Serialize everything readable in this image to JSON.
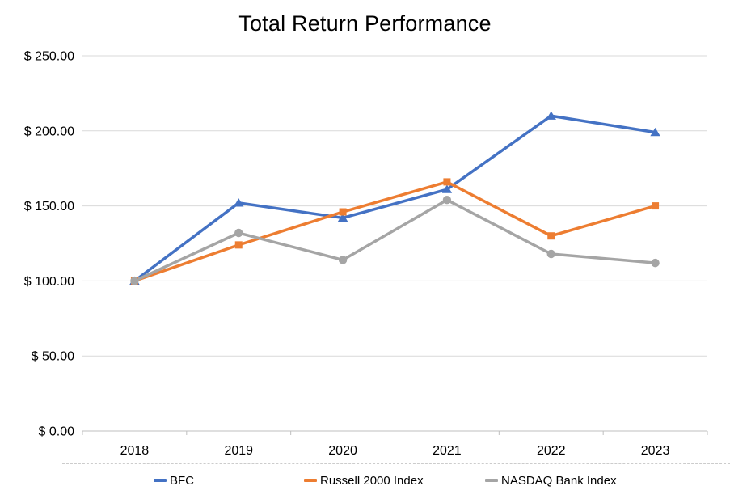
{
  "chart_data": {
    "type": "line",
    "title": "Total Return Performance",
    "categories": [
      "2018",
      "2019",
      "2020",
      "2021",
      "2022",
      "2023"
    ],
    "series": [
      {
        "name": "BFC",
        "color": "#4472C4",
        "marker": "triangle",
        "values": [
          100,
          152,
          142,
          161,
          210,
          199
        ]
      },
      {
        "name": "Russell 2000 Index",
        "color": "#ED7D31",
        "marker": "square",
        "values": [
          100,
          124,
          146,
          166,
          130,
          150
        ]
      },
      {
        "name": "NASDAQ Bank Index",
        "color": "#A5A5A5",
        "marker": "circle",
        "values": [
          100,
          132,
          114,
          154,
          118,
          112
        ]
      }
    ],
    "y_axis": {
      "min": 0,
      "max": 250,
      "step": 50,
      "tick_labels": [
        "$ 0.00",
        "$ 50.00",
        "$ 100.00",
        "$ 150.00",
        "$ 200.00",
        "$ 250.00"
      ]
    },
    "x_axis": {
      "tick_labels": [
        "2018",
        "2019",
        "2020",
        "2021",
        "2022",
        "2023"
      ]
    },
    "legend_position": "bottom",
    "grid": true,
    "grid_color": "#d9d9d9",
    "axis_color": "#bfbfbf",
    "text_color": "#000000"
  }
}
